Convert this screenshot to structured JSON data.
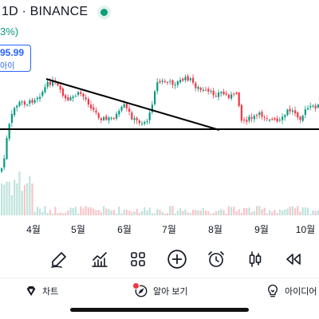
{
  "header": {
    "title": "1D · BINANCE",
    "change_pct": "3%)",
    "price_value": "95.99",
    "price_sub": "아이",
    "status_color": "#0e9e7a"
  },
  "chart_data": {
    "type": "candlestick",
    "x_tick_labels": [
      "4월",
      "5월",
      "6월",
      "7월",
      "8월",
      "9월",
      "10월"
    ],
    "annotations": [
      "descending trendline from the early-April high to the late-July low",
      "horizontal support line across the range low"
    ],
    "colors": {
      "up": "#089981",
      "down": "#f23645",
      "line": "#000000"
    },
    "grid": false
  },
  "toolbar": {
    "tools": [
      {
        "name": "draw-tool-icon"
      },
      {
        "name": "indicators-icon"
      },
      {
        "name": "templates-icon"
      },
      {
        "name": "add-icon"
      },
      {
        "name": "alert-clock-icon"
      },
      {
        "name": "chart-type-candles-icon"
      },
      {
        "name": "rewind-icon"
      }
    ]
  },
  "nav": {
    "chart_label": "차트",
    "alerts_label": "알아 보기",
    "ideas_label": "아이디어"
  },
  "colors": {
    "accent": "#2962ff",
    "up": "#089981",
    "down": "#f23645",
    "alert_badge": "#f23645"
  }
}
